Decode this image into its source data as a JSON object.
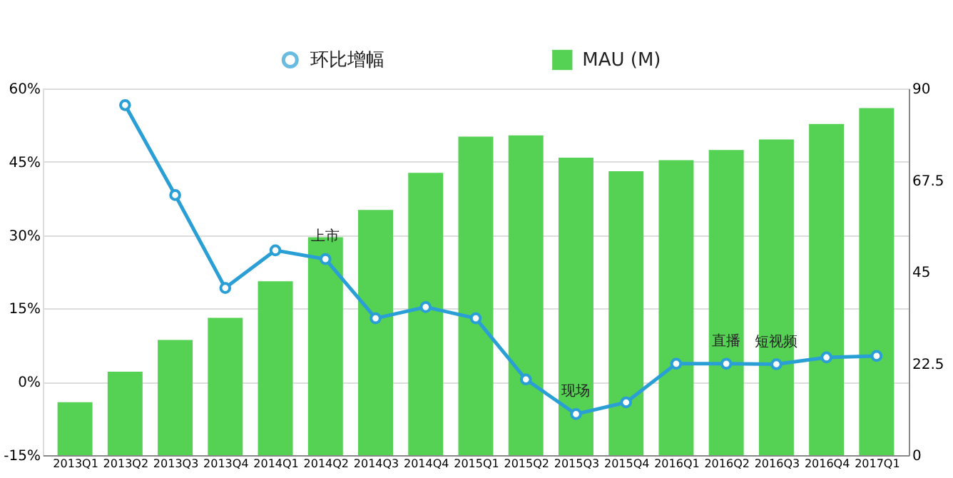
{
  "chart_data": {
    "type": "bar",
    "categories": [
      "2013Q1",
      "2013Q2",
      "2013Q3",
      "2013Q4",
      "2014Q1",
      "2014Q2",
      "2014Q3",
      "2014Q4",
      "2015Q1",
      "2015Q2",
      "2015Q3",
      "2015Q4",
      "2016Q1",
      "2016Q2",
      "2016Q3",
      "2016Q4",
      "2017Q1"
    ],
    "series": [
      {
        "name": "MAU (M)",
        "axis": "y2",
        "color": "#55d154",
        "values": [
          13.0,
          20.5,
          28.3,
          33.7,
          42.7,
          53.5,
          60.2,
          69.3,
          78.2,
          78.5,
          73.0,
          69.7,
          72.4,
          74.9,
          77.5,
          81.3,
          85.2
        ]
      },
      {
        "name": "环比增幅",
        "type": "line",
        "color": "#2a9fd6",
        "marker": "circle",
        "values": [
          null,
          56.6,
          38.2,
          19.2,
          26.9,
          25.1,
          13.0,
          15.3,
          13.0,
          0.5,
          -6.6,
          -4.2,
          3.7,
          3.7,
          3.6,
          5.0,
          5.3
        ]
      }
    ],
    "ylim": [
      -15,
      60
    ],
    "yticks": [
      {
        "value": -15,
        "label": "-15%"
      },
      {
        "value": 0,
        "label": "0%"
      },
      {
        "value": 15,
        "label": "15%"
      },
      {
        "value": 30,
        "label": "30%"
      },
      {
        "value": 45,
        "label": "45%"
      },
      {
        "value": 60,
        "label": "60%"
      }
    ],
    "y2lim": [
      0,
      90
    ],
    "y2ticks": [
      0,
      22.5,
      45,
      67.5,
      90
    ],
    "annotations": [
      {
        "text": "上市",
        "x": "2014Q2",
        "y": 25.1
      },
      {
        "text": "现场",
        "x": "2015Q3",
        "y": -6.6
      },
      {
        "text": "直播",
        "x": "2016Q2",
        "y": 3.7
      },
      {
        "text": "短视频",
        "x": "2016Q3",
        "y": 3.6
      }
    ],
    "grid": "y",
    "legend": "top"
  }
}
